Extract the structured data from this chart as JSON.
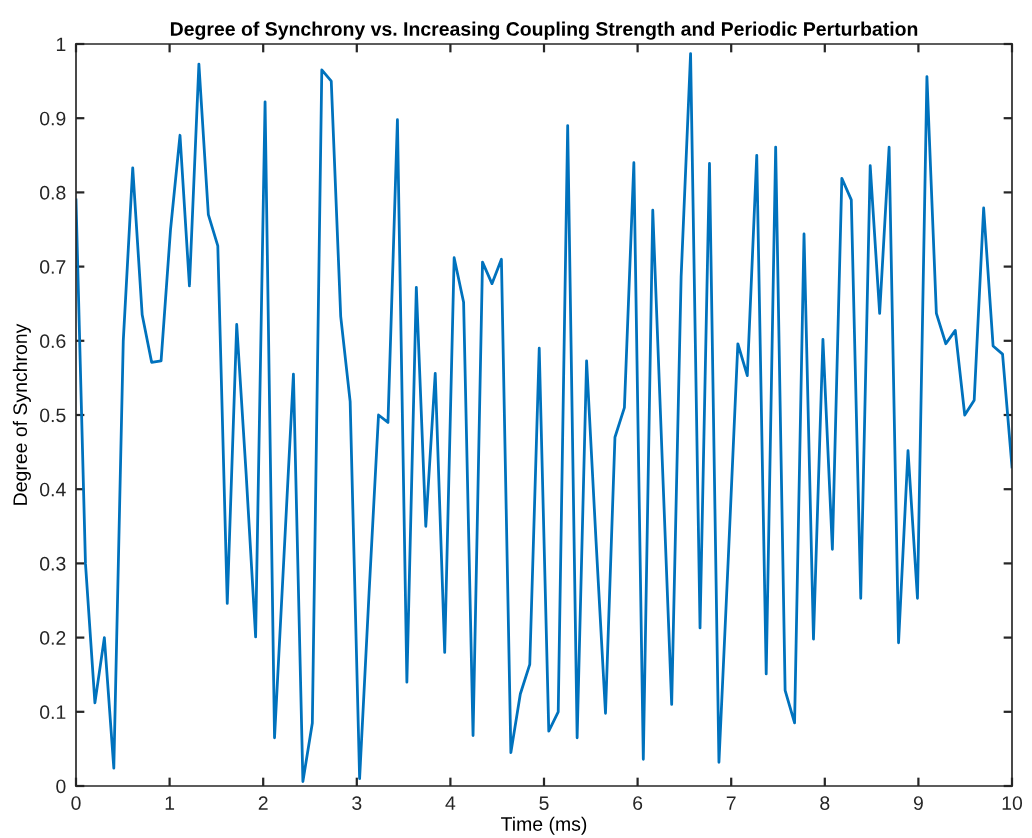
{
  "chart_data": {
    "type": "line",
    "title": "Degree of Synchrony vs. Increasing Coupling Strength and Periodic Perturbation",
    "xlabel": "Time (ms)",
    "ylabel": "Degree of Synchrony",
    "x": [
      0,
      0.101,
      0.202,
      0.303,
      0.404,
      0.505,
      0.606,
      0.707,
      0.808,
      0.909,
      1.01,
      1.111,
      1.212,
      1.313,
      1.414,
      1.515,
      1.616,
      1.717,
      1.818,
      1.919,
      2.02,
      2.121,
      2.222,
      2.323,
      2.424,
      2.525,
      2.626,
      2.727,
      2.828,
      2.929,
      3.03,
      3.131,
      3.232,
      3.333,
      3.434,
      3.535,
      3.636,
      3.737,
      3.838,
      3.939,
      4.04,
      4.141,
      4.242,
      4.343,
      4.444,
      4.545,
      4.646,
      4.747,
      4.848,
      4.949,
      5.051,
      5.152,
      5.253,
      5.354,
      5.455,
      5.556,
      5.657,
      5.758,
      5.859,
      5.96,
      6.061,
      6.162,
      6.263,
      6.364,
      6.465,
      6.566,
      6.667,
      6.768,
      6.869,
      6.97,
      7.071,
      7.172,
      7.273,
      7.374,
      7.475,
      7.576,
      7.677,
      7.778,
      7.879,
      7.98,
      8.081,
      8.182,
      8.283,
      8.384,
      8.485,
      8.586,
      8.687,
      8.788,
      8.889,
      8.99,
      9.091,
      9.192,
      9.293,
      9.394,
      9.495,
      9.596,
      9.697,
      9.798,
      9.899,
      10
    ],
    "series": [
      {
        "color": "#0072bd",
        "values": [
          0.79,
          0.3,
          0.112,
          0.2,
          0.024,
          0.6,
          0.833,
          0.635,
          0.571,
          0.573,
          0.75,
          0.877,
          0.674,
          0.973,
          0.77,
          0.728,
          0.246,
          0.622,
          0.42,
          0.201,
          0.922,
          0.065,
          0.31,
          0.555,
          0.006,
          0.085,
          0.965,
          0.95,
          0.633,
          0.518,
          0.01,
          0.26,
          0.5,
          0.49,
          0.898,
          0.14,
          0.672,
          0.35,
          0.556,
          0.18,
          0.712,
          0.652,
          0.068,
          0.706,
          0.677,
          0.71,
          0.045,
          0.124,
          0.164,
          0.59,
          0.074,
          0.1,
          0.89,
          0.065,
          0.573,
          0.33,
          0.098,
          0.47,
          0.51,
          0.84,
          0.036,
          0.776,
          0.44,
          0.11,
          0.686,
          0.987,
          0.213,
          0.839,
          0.032,
          0.31,
          0.596,
          0.553,
          0.85,
          0.151,
          0.861,
          0.129,
          0.085,
          0.744,
          0.198,
          0.602,
          0.319,
          0.819,
          0.79,
          0.253,
          0.836,
          0.637,
          0.861,
          0.193,
          0.452,
          0.253,
          0.956,
          0.637,
          0.596,
          0.614,
          0.5,
          0.52,
          0.779,
          0.593,
          0.582,
          0.43
        ]
      }
    ],
    "xlim": [
      0,
      10
    ],
    "xticks": [
      0,
      1,
      2,
      3,
      4,
      5,
      6,
      7,
      8,
      9,
      10
    ],
    "ylim": [
      0,
      1
    ],
    "yticks": [
      0,
      0.1,
      0.2,
      0.3,
      0.4,
      0.5,
      0.6,
      0.7,
      0.8,
      0.9,
      1
    ],
    "grid": false,
    "legend": false,
    "marker": "none",
    "line_style": "solid"
  }
}
